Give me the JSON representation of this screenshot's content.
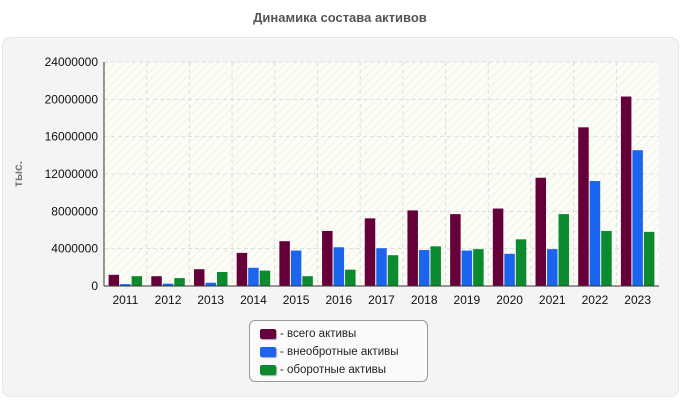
{
  "chart_data": {
    "type": "bar",
    "title": "Динамика состава активов",
    "ylabel": "тыс.",
    "xlabel": "",
    "categories": [
      "2011",
      "2012",
      "2013",
      "2014",
      "2015",
      "2016",
      "2017",
      "2018",
      "2019",
      "2020",
      "2021",
      "2022",
      "2023"
    ],
    "series": [
      {
        "name": "- всего активы",
        "color": "#66003a",
        "values": [
          1200000,
          1050000,
          1800000,
          3550000,
          4800000,
          5900000,
          7250000,
          8100000,
          7700000,
          8300000,
          11600000,
          17000000,
          20300000
        ]
      },
      {
        "name": "- внеобротные активы",
        "color": "#1a64ee",
        "values": [
          200000,
          250000,
          350000,
          1950000,
          3800000,
          4150000,
          4050000,
          3850000,
          3800000,
          3450000,
          3950000,
          11250000,
          14550000
        ]
      },
      {
        "name": "- оборотные активы",
        "color": "#0c8a2e",
        "values": [
          1050000,
          850000,
          1500000,
          1650000,
          1050000,
          1750000,
          3300000,
          4250000,
          3950000,
          5000000,
          7700000,
          5900000,
          5800000
        ]
      }
    ],
    "yticks": [
      "0",
      "4000000",
      "8000000",
      "12000000",
      "16000000",
      "20000000",
      "24000000"
    ],
    "ylim": [
      0,
      24000000
    ],
    "grid": true,
    "legend_position": "bottom"
  }
}
